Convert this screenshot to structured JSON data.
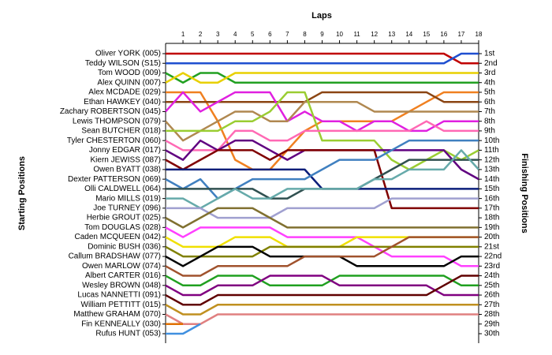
{
  "chart_data": {
    "type": "line",
    "x_title": "Laps",
    "y_title": "Starting Positions",
    "y2_title": "Finishing Positions",
    "x": [
      0,
      1,
      2,
      3,
      4,
      5,
      6,
      7,
      8,
      9,
      10,
      11,
      12,
      13,
      14,
      15,
      16,
      17,
      18
    ],
    "xlim": [
      0,
      18
    ],
    "xticks": [
      1,
      2,
      3,
      4,
      5,
      6,
      7,
      8,
      9,
      10,
      11,
      12,
      13,
      14,
      15,
      16,
      17,
      18
    ],
    "ylim": [
      1,
      30
    ],
    "y_reversed": true,
    "finishing_labels": [
      "1st",
      "2nd",
      "3rd",
      "4th",
      "5th",
      "6th",
      "7th",
      "8th",
      "9th",
      "10th",
      "11th",
      "12th",
      "13th",
      "14th",
      "15th",
      "16th",
      "17th",
      "18th",
      "19th",
      "20th",
      "21st",
      "22nd",
      "23rd",
      "24th",
      "25th",
      "26th",
      "27th",
      "28th",
      "29th",
      "30th"
    ],
    "series": [
      {
        "name": "Oliver YORK (005)",
        "color": "#c00000",
        "values": [
          1,
          1,
          1,
          1,
          1,
          1,
          1,
          1,
          1,
          1,
          1,
          1,
          1,
          1,
          1,
          1,
          1,
          2,
          2
        ]
      },
      {
        "name": "Teddy WILSON (S15)",
        "color": "#1f4fd0",
        "values": [
          2,
          2,
          2,
          2,
          2,
          2,
          2,
          2,
          2,
          2,
          2,
          2,
          2,
          2,
          2,
          2,
          2,
          1,
          1
        ]
      },
      {
        "name": "Tom WOOD (009)",
        "color": "#22a022",
        "values": [
          3,
          4,
          3,
          3,
          4,
          4,
          4,
          4,
          4,
          4,
          4,
          4,
          4,
          4,
          4,
          4,
          4,
          4,
          4
        ]
      },
      {
        "name": "Alex QUINN (007)",
        "color": "#e8d000",
        "values": [
          4,
          3,
          4,
          4,
          3,
          3,
          3,
          3,
          3,
          3,
          3,
          3,
          3,
          3,
          3,
          3,
          3,
          3,
          3
        ]
      },
      {
        "name": "Alex MCDADE (029)",
        "color": "#f08020",
        "values": [
          5,
          5,
          5,
          8,
          12,
          13,
          13,
          11,
          9,
          8,
          8,
          8,
          8,
          8,
          7,
          6,
          5,
          5,
          5
        ]
      },
      {
        "name": "Ethan HAWKEY (040)",
        "color": "#8b4513",
        "values": [
          6,
          6,
          6,
          6,
          6,
          6,
          6,
          6,
          6,
          5,
          5,
          5,
          5,
          5,
          5,
          5,
          6,
          6,
          6
        ]
      },
      {
        "name": "Zachary ROBERTSON (045)",
        "color": "#e020e0",
        "values": [
          7,
          5,
          7,
          6,
          5,
          5,
          5,
          8,
          7,
          8,
          8,
          9,
          8,
          8,
          9,
          9,
          8,
          8,
          8
        ]
      },
      {
        "name": "Lewis THOMPSON (079)",
        "color": "#b08850",
        "values": [
          8,
          10,
          9,
          8,
          7,
          7,
          8,
          8,
          6,
          6,
          6,
          6,
          7,
          7,
          7,
          7,
          7,
          7,
          7
        ]
      },
      {
        "name": "Sean BUTCHER (018)",
        "color": "#9acd32",
        "values": [
          9,
          9,
          9,
          9,
          8,
          8,
          7,
          5,
          5,
          10,
          10,
          10,
          10,
          12,
          13,
          12,
          11,
          12,
          11
        ]
      },
      {
        "name": "Tyler CHESTERTON (060)",
        "color": "#ff69b4",
        "values": [
          10,
          11,
          11,
          11,
          9,
          9,
          10,
          10,
          9,
          9,
          9,
          9,
          9,
          9,
          9,
          8,
          9,
          9,
          9
        ]
      },
      {
        "name": "Jonny EDGAR (017)",
        "color": "#600080",
        "values": [
          11,
          12,
          10,
          11,
          10,
          10,
          11,
          12,
          11,
          11,
          11,
          11,
          11,
          11,
          11,
          11,
          11,
          13,
          14
        ]
      },
      {
        "name": "Kiern JEWISS (087)",
        "color": "#800000",
        "values": [
          12,
          13,
          12,
          11,
          11,
          11,
          12,
          11,
          11,
          11,
          11,
          11,
          11,
          17,
          17,
          17,
          17,
          17,
          17
        ]
      },
      {
        "name": "Owen BYATT (038)",
        "color": "#0a1e7a",
        "values": [
          13,
          13,
          13,
          13,
          13,
          13,
          13,
          13,
          13,
          15,
          15,
          15,
          15,
          15,
          15,
          15,
          15,
          15,
          15
        ]
      },
      {
        "name": "Dexter PATTERSON (069)",
        "color": "#4080c0",
        "values": [
          14,
          15,
          14,
          16,
          15,
          14,
          14,
          14,
          14,
          13,
          12,
          12,
          12,
          11,
          10,
          10,
          10,
          10,
          10
        ]
      },
      {
        "name": "Olli CALDWELL (064)",
        "color": "#305050",
        "values": [
          15,
          15,
          15,
          15,
          15,
          15,
          16,
          16,
          15,
          15,
          15,
          15,
          14,
          13,
          12,
          12,
          12,
          12,
          12
        ]
      },
      {
        "name": "Mario MILLS (019)",
        "color": "#66aaaa",
        "values": [
          16,
          16,
          17,
          16,
          15,
          16,
          16,
          15,
          15,
          15,
          15,
          15,
          14,
          14,
          13,
          13,
          13,
          11,
          13
        ]
      },
      {
        "name": "Joe TURNEY (096)",
        "color": "#a0a0d0",
        "values": [
          17,
          17,
          17,
          18,
          18,
          18,
          18,
          17,
          17,
          17,
          17,
          17,
          17,
          16,
          16,
          16,
          16,
          16,
          16
        ]
      },
      {
        "name": "Herbie GROUT (025)",
        "color": "#807030",
        "values": [
          18,
          19,
          18,
          17,
          17,
          17,
          18,
          19,
          19,
          19,
          19,
          19,
          19,
          19,
          19,
          19,
          19,
          19,
          19
        ]
      },
      {
        "name": "Tom DOUGLAS (028)",
        "color": "#ff40ff",
        "values": [
          19,
          20,
          19,
          19,
          19,
          19,
          19,
          20,
          20,
          20,
          20,
          20,
          21,
          22,
          22,
          22,
          22,
          23,
          23
        ]
      },
      {
        "name": "Caden MCQUEEN (042)",
        "color": "#f0e000",
        "values": [
          20,
          21,
          21,
          21,
          20,
          20,
          20,
          21,
          21,
          21,
          21,
          20,
          20,
          20,
          20,
          20,
          20,
          20,
          20
        ]
      },
      {
        "name": "Dominic BUSH (036)",
        "color": "#808000",
        "values": [
          21,
          22,
          22,
          22,
          22,
          22,
          21,
          21,
          21,
          21,
          21,
          21,
          21,
          21,
          21,
          21,
          21,
          21,
          21
        ]
      },
      {
        "name": "Callum BRADSHAW (077)",
        "color": "#000000",
        "values": [
          22,
          23,
          22,
          21,
          21,
          21,
          22,
          22,
          22,
          22,
          22,
          23,
          23,
          23,
          23,
          23,
          23,
          22,
          22
        ]
      },
      {
        "name": "Owen MARLOW (074)",
        "color": "#a0522d",
        "values": [
          23,
          24,
          24,
          23,
          23,
          23,
          23,
          23,
          22,
          22,
          22,
          22,
          22,
          21,
          20,
          20,
          20,
          20,
          20
        ]
      },
      {
        "name": "Albert CARTER (016)",
        "color": "#20a020",
        "values": [
          24,
          25,
          25,
          24,
          24,
          24,
          25,
          25,
          25,
          25,
          24,
          24,
          24,
          24,
          24,
          24,
          24,
          25,
          25
        ]
      },
      {
        "name": "Wesley BROWN (048)",
        "color": "#800080",
        "values": [
          25,
          26,
          26,
          25,
          25,
          25,
          24,
          24,
          24,
          24,
          25,
          25,
          25,
          25,
          25,
          25,
          26,
          26,
          26
        ]
      },
      {
        "name": "Lucas NANNETTI (091)",
        "color": "#600000",
        "values": [
          26,
          27,
          27,
          26,
          26,
          26,
          26,
          26,
          26,
          26,
          26,
          26,
          26,
          26,
          26,
          26,
          25,
          24,
          24
        ]
      },
      {
        "name": "William PETTITT (015)",
        "color": "#c09020",
        "values": [
          27,
          28,
          28,
          27,
          27,
          27,
          27,
          27,
          27,
          27,
          27,
          27,
          27,
          27,
          27,
          27,
          27,
          27,
          27
        ]
      },
      {
        "name": "Matthew GRAHAM (070)",
        "color": "#e08080",
        "values": [
          28,
          29,
          29,
          28,
          28,
          28,
          28,
          28,
          28,
          28,
          28,
          28,
          28,
          28,
          28,
          28,
          28,
          28,
          28
        ]
      },
      {
        "name": "Fin KENNEALLY (030)",
        "color": "#e07000",
        "values": [
          29,
          29,
          null,
          null,
          null,
          null,
          null,
          null,
          null,
          null,
          null,
          null,
          null,
          null,
          null,
          null,
          null,
          null,
          null
        ]
      },
      {
        "name": "Rufus HUNT (053)",
        "color": "#4090e0",
        "values": [
          30,
          30,
          29,
          null,
          null,
          null,
          null,
          null,
          null,
          null,
          null,
          null,
          null,
          null,
          null,
          null,
          null,
          null,
          null
        ]
      }
    ]
  }
}
